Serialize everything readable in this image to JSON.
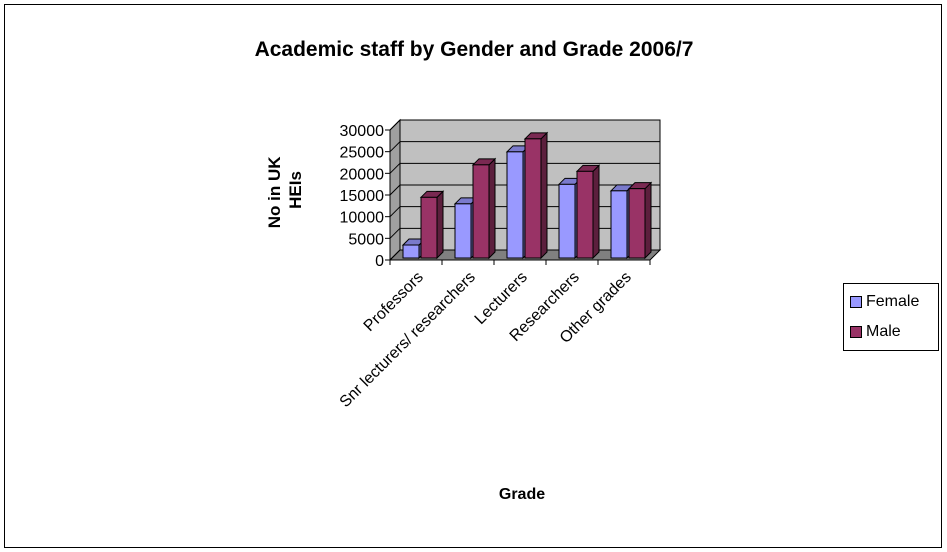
{
  "chart_data": {
    "type": "bar",
    "title": "Academic staff by Gender and Grade 2006/7",
    "xlabel": "Grade",
    "ylabel": "No in UK HEIs",
    "ylabel_lines": [
      "No in UK",
      "HEIs"
    ],
    "categories": [
      "Professors",
      "Snr lecturers/ researchers",
      "Lecturers",
      "Researchers",
      "Other grades"
    ],
    "series": [
      {
        "name": "Female",
        "color": "#9999ff",
        "values": [
          3000,
          12500,
          24500,
          17000,
          15500
        ]
      },
      {
        "name": "Male",
        "color": "#993366",
        "values": [
          14000,
          21500,
          27500,
          20000,
          16000
        ]
      }
    ],
    "ylim": [
      0,
      30000
    ],
    "yticks": [
      0,
      5000,
      10000,
      15000,
      20000,
      25000,
      30000
    ],
    "grid": true,
    "legend_position": "right",
    "style": "3d-clustered-column"
  }
}
